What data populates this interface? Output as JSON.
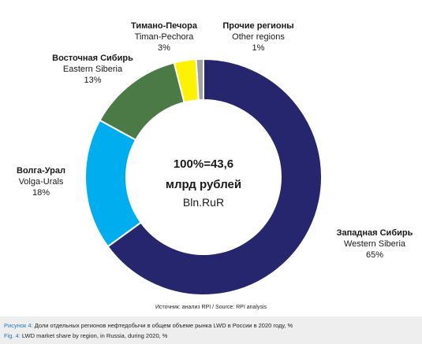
{
  "chart_data": {
    "type": "pie",
    "variant": "donut",
    "center_text": [
      "100%=43,6",
      "млрд рублей",
      "Bln.RuR"
    ],
    "categories": [
      "Западная Сибирь / Western Siberia",
      "Волга-Урал / Volga-Urals",
      "Восточная Сибирь / Eastern Siberia",
      "Тимано-Печора / Timan-Pechora",
      "Прочие регионы / Other regions"
    ],
    "values": [
      65,
      18,
      13,
      3,
      1
    ],
    "unit": "%",
    "slices": [
      {
        "ru": "Западная Сибирь",
        "en": "Western Siberia",
        "value": 65,
        "label": "65%",
        "color": "#26266e"
      },
      {
        "ru": "Волга-Урал",
        "en": "Volga-Urals",
        "value": 18,
        "label": "18%",
        "color": "#00aeef"
      },
      {
        "ru": "Восточная Сибирь",
        "en": "Eastern Siberia",
        "value": 13,
        "label": "13%",
        "color": "#4c7a46"
      },
      {
        "ru": "Тимано-Печора",
        "en": "Timan-Pechora",
        "value": 3,
        "label": "3%",
        "color": "#fff200"
      },
      {
        "ru": "Прочие регионы",
        "en": "Other regions",
        "value": 1,
        "label": "1%",
        "color": "#a0a0a4"
      }
    ],
    "source": "Источник: анализ RPI / Source: RPI analysis",
    "caption_ru_prefix": "Рисунок 4:",
    "caption_ru": " Доли отдельных регионов нефтедобычи в общем объеме рынка LWD в России в 2020 году, %",
    "caption_en_prefix": "Fig. 4:",
    "caption_en": " LWD market share by region, in Russia, during 2020, %"
  }
}
